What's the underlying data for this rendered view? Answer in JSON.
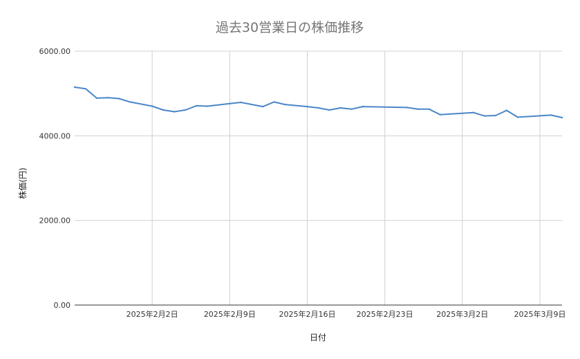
{
  "chart_data": {
    "type": "line",
    "title": "過去30営業日の株価推移",
    "xlabel": "日付",
    "ylabel": "株価(円)",
    "ylim": [
      0,
      6000
    ],
    "yticks": [
      {
        "value": 0,
        "label": "0.00"
      },
      {
        "value": 2000,
        "label": "2000.00"
      },
      {
        "value": 4000,
        "label": "4000.00"
      },
      {
        "value": 6000,
        "label": "6000.00"
      }
    ],
    "xlim": [
      "2025-01-26",
      "2025-03-11"
    ],
    "xticks": [
      {
        "date": "2025-02-02",
        "label": "2025年2月2日"
      },
      {
        "date": "2025-02-09",
        "label": "2025年2月9日"
      },
      {
        "date": "2025-02-16",
        "label": "2025年2月16日"
      },
      {
        "date": "2025-02-23",
        "label": "2025年2月23日"
      },
      {
        "date": "2025-03-02",
        "label": "2025年3月2日"
      },
      {
        "date": "2025-03-09",
        "label": "2025年3月9日"
      }
    ],
    "grid": true,
    "line_color": "#4a86c8",
    "series": [
      {
        "points": [
          {
            "x": "2025-01-26",
            "y": 5150
          },
          {
            "x": "2025-01-27",
            "y": 5110
          },
          {
            "x": "2025-01-28",
            "y": 4890
          },
          {
            "x": "2025-01-29",
            "y": 4900
          },
          {
            "x": "2025-01-30",
            "y": 4880
          },
          {
            "x": "2025-01-31",
            "y": 4800
          },
          {
            "x": "2025-02-02",
            "y": 4700
          },
          {
            "x": "2025-02-03",
            "y": 4610
          },
          {
            "x": "2025-02-04",
            "y": 4570
          },
          {
            "x": "2025-02-05",
            "y": 4610
          },
          {
            "x": "2025-02-06",
            "y": 4710
          },
          {
            "x": "2025-02-07",
            "y": 4700
          },
          {
            "x": "2025-02-09",
            "y": 4760
          },
          {
            "x": "2025-02-10",
            "y": 4790
          },
          {
            "x": "2025-02-12",
            "y": 4690
          },
          {
            "x": "2025-02-13",
            "y": 4800
          },
          {
            "x": "2025-02-14",
            "y": 4740
          },
          {
            "x": "2025-02-16",
            "y": 4690
          },
          {
            "x": "2025-02-17",
            "y": 4660
          },
          {
            "x": "2025-02-18",
            "y": 4610
          },
          {
            "x": "2025-02-19",
            "y": 4660
          },
          {
            "x": "2025-02-20",
            "y": 4630
          },
          {
            "x": "2025-02-21",
            "y": 4690
          },
          {
            "x": "2025-02-25",
            "y": 4670
          },
          {
            "x": "2025-02-26",
            "y": 4630
          },
          {
            "x": "2025-02-27",
            "y": 4630
          },
          {
            "x": "2025-02-28",
            "y": 4500
          },
          {
            "x": "2025-03-03",
            "y": 4550
          },
          {
            "x": "2025-03-04",
            "y": 4470
          },
          {
            "x": "2025-03-05",
            "y": 4480
          },
          {
            "x": "2025-03-06",
            "y": 4600
          },
          {
            "x": "2025-03-07",
            "y": 4440
          },
          {
            "x": "2025-03-10",
            "y": 4490
          },
          {
            "x": "2025-03-11",
            "y": 4430
          }
        ]
      }
    ]
  }
}
